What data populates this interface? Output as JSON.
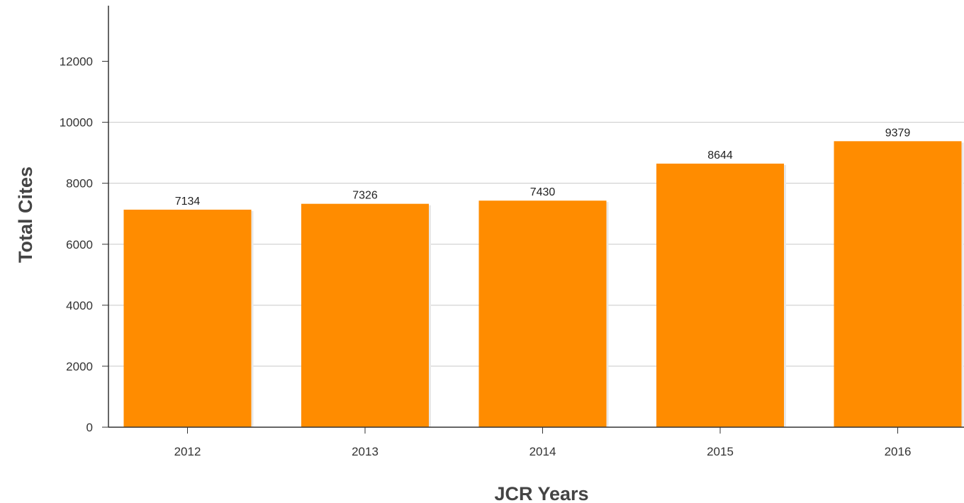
{
  "chart_data": {
    "type": "bar",
    "categories": [
      "2012",
      "2013",
      "2014",
      "2015",
      "2016"
    ],
    "values": [
      7134,
      7326,
      7430,
      8644,
      9379
    ],
    "title": "",
    "xlabel": "JCR Years",
    "ylabel": "Total Cites",
    "ylim": [
      0,
      13000
    ],
    "yticks": [
      0,
      2000,
      4000,
      6000,
      8000,
      10000,
      12000
    ],
    "grid": true,
    "legend": "none",
    "colors": {
      "bar": "#ff8c00",
      "bar_shadow": "#e8e8e8",
      "grid": "#c8c8c8",
      "axis": "#333333"
    }
  }
}
